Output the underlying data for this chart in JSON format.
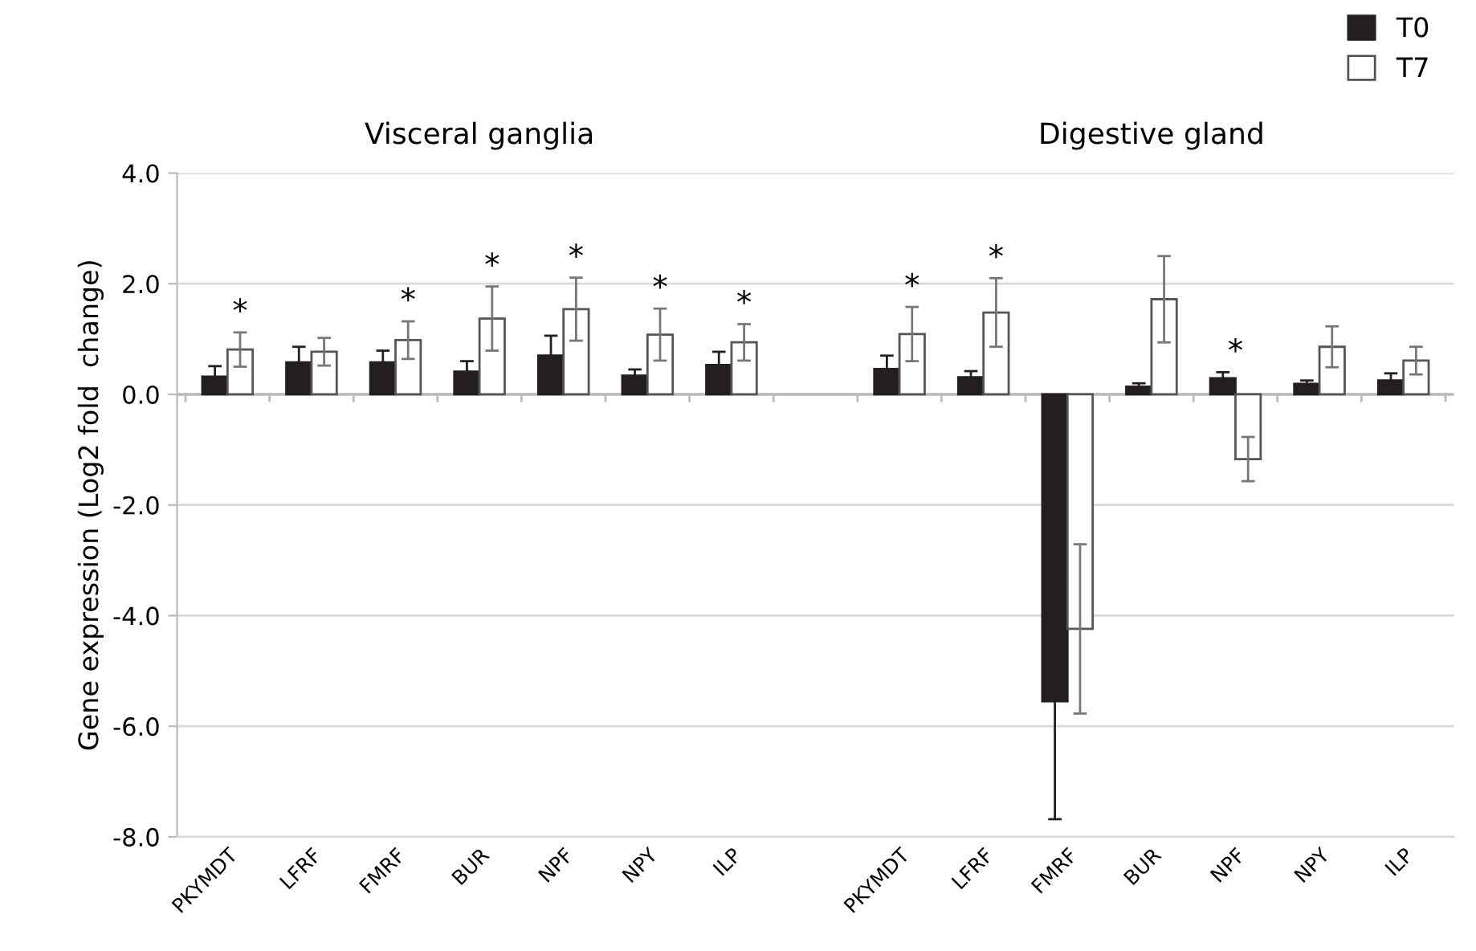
{
  "chart_data": {
    "type": "bar",
    "ylabel": "Gene expression (Log2 fold  change)",
    "annotations": [
      "Visceral ganglia",
      "Digestive gland"
    ],
    "categories": [
      "PKYMDT",
      "LFRF",
      "FMRF",
      "BUR",
      "NPF",
      "NPY",
      "ILP",
      null,
      "PKYMDT",
      "LFRF",
      "FMRF",
      "BUR",
      "NPF",
      "NPY",
      "ILP"
    ],
    "series": [
      {
        "name": "T0",
        "color": "#231f20",
        "values": [
          0.32,
          0.58,
          0.58,
          0.41,
          0.7,
          0.34,
          0.53,
          null,
          0.46,
          0.31,
          -5.55,
          0.14,
          0.29,
          0.19,
          0.25
        ],
        "errors": [
          0.19,
          0.28,
          0.21,
          0.19,
          0.36,
          0.11,
          0.24,
          null,
          0.24,
          0.11,
          2.13,
          0.06,
          0.11,
          0.06,
          0.13
        ]
      },
      {
        "name": "T7",
        "color": "#ffffff",
        "values": [
          0.81,
          0.77,
          0.98,
          1.37,
          1.54,
          1.08,
          0.94,
          null,
          1.09,
          1.48,
          -4.24,
          1.72,
          -1.17,
          0.86,
          0.61
        ],
        "errors": [
          0.31,
          0.25,
          0.34,
          0.58,
          0.57,
          0.47,
          0.33,
          null,
          0.49,
          0.62,
          1.53,
          0.78,
          0.4,
          0.37,
          0.25
        ],
        "value_labels": [
          "*",
          null,
          "*",
          "*",
          "*",
          "*",
          "*",
          null,
          "*",
          "*",
          null,
          null,
          "*",
          null,
          null
        ]
      }
    ],
    "ylim": [
      -8,
      4
    ],
    "yticks": [
      {
        "value": -8,
        "label": "-8.0"
      },
      {
        "value": -6,
        "label": "-6.0"
      },
      {
        "value": -4,
        "label": "-4.0"
      },
      {
        "value": -2,
        "label": "-2.0"
      },
      {
        "value": 0,
        "label": "0.0"
      },
      {
        "value": 2,
        "label": "2.0"
      },
      {
        "value": 4,
        "label": "4.0"
      }
    ],
    "grid": "y",
    "legend": "top right"
  }
}
